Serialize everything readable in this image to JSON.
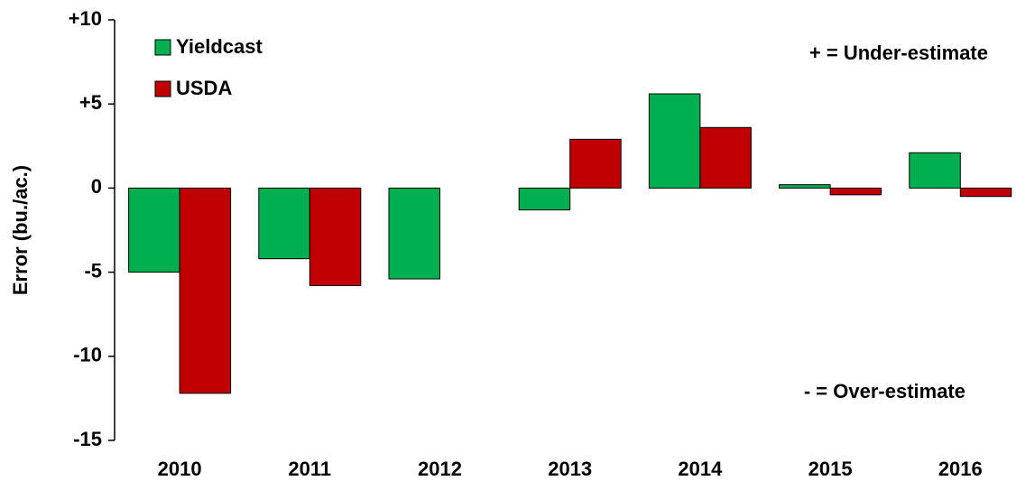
{
  "chart_data": {
    "type": "bar",
    "ylabel": "Error (bu./ac.)",
    "categories": [
      "2010",
      "2011",
      "2012",
      "2013",
      "2014",
      "2015",
      "2016"
    ],
    "series": [
      {
        "name": "Yieldcast",
        "color": "#00b050",
        "values": [
          -5.0,
          -4.2,
          -5.4,
          -1.3,
          5.6,
          0.2,
          2.1
        ]
      },
      {
        "name": "USDA",
        "color": "#c00000",
        "values": [
          -12.2,
          -5.8,
          null,
          2.9,
          3.6,
          -0.4,
          -0.5
        ]
      }
    ],
    "ylim": [
      -15,
      10
    ],
    "yticks": [
      -15,
      -10,
      -5,
      0,
      {
        "value": 5,
        "label": "+5"
      },
      {
        "value": 10,
        "label": "+10"
      }
    ],
    "annotations": [
      "+ = Under-estimate",
      "- = Over-estimate"
    ],
    "legend": "upper left"
  }
}
